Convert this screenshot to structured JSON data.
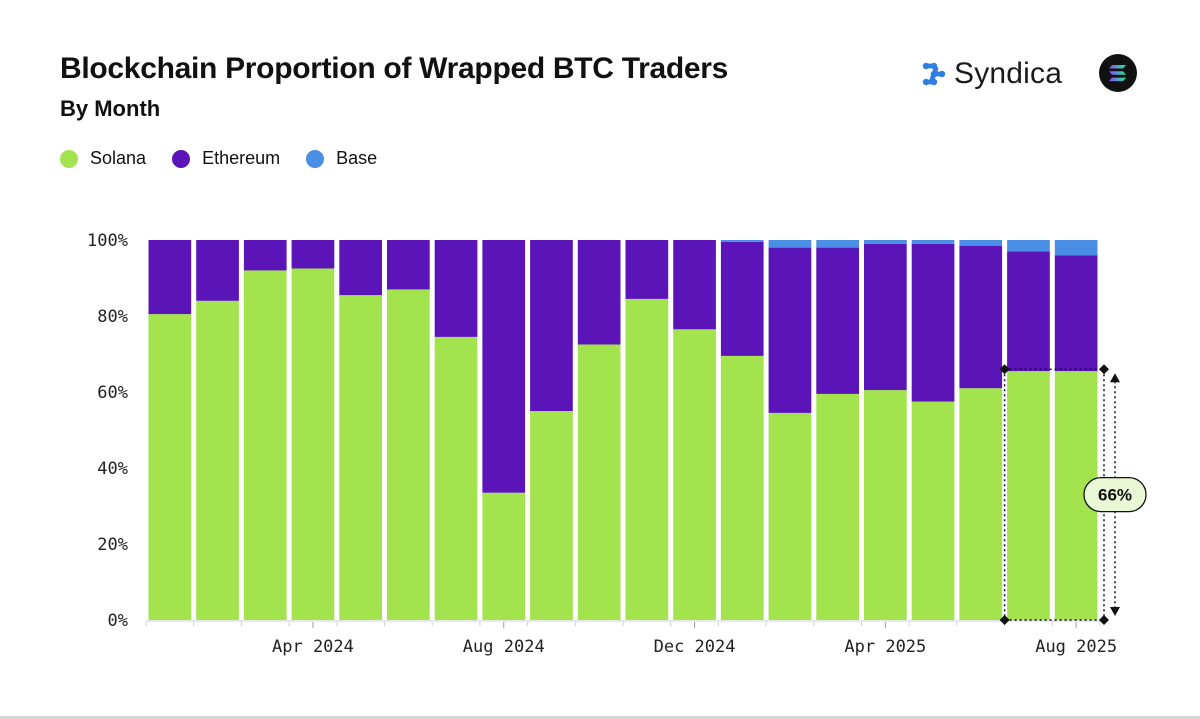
{
  "header": {
    "title": "Blockchain Proportion of Wrapped BTC Traders",
    "subtitle": "By Month"
  },
  "brand": {
    "name": "Syndica",
    "logo_icon": "syndica-logo-icon",
    "badge_icon": "solana-logo-icon"
  },
  "colors": {
    "solana": "#a3e34d",
    "ethereum": "#5b14b8",
    "base": "#4a8ee6"
  },
  "legend": [
    {
      "label": "Solana",
      "color": "#a3e34d"
    },
    {
      "label": "Ethereum",
      "color": "#5b14b8"
    },
    {
      "label": "Base",
      "color": "#4a8ee6"
    }
  ],
  "chart_data": {
    "type": "bar",
    "stacked": true,
    "categories": [
      "2024-01",
      "2024-02",
      "2024-03",
      "2024-04",
      "2024-05",
      "2024-06",
      "2024-07",
      "2024-08",
      "2024-09",
      "2024-10",
      "2024-11",
      "2024-12",
      "2025-01",
      "2025-02",
      "2025-03",
      "2025-04",
      "2025-05",
      "2025-06",
      "2025-07",
      "2025-08"
    ],
    "series": [
      {
        "name": "Solana",
        "color": "#a3e34d",
        "values": [
          80.5,
          84,
          92,
          92.5,
          85.5,
          87,
          74.5,
          33.5,
          55,
          72.5,
          84.5,
          76.5,
          69.5,
          54.5,
          59.5,
          60.5,
          57.5,
          61,
          65.5,
          65.5
        ]
      },
      {
        "name": "Ethereum",
        "color": "#5b14b8",
        "values": [
          19.5,
          16,
          8,
          7.5,
          14.5,
          13,
          25.5,
          66.5,
          45,
          27.5,
          15.5,
          23.5,
          30,
          43.5,
          38.5,
          38.5,
          41.5,
          37.5,
          31.5,
          30.5
        ]
      },
      {
        "name": "Base",
        "color": "#4a8ee6",
        "values": [
          0,
          0,
          0,
          0,
          0,
          0,
          0,
          0,
          0,
          0,
          0,
          0,
          0.5,
          2,
          2,
          1,
          1,
          1.5,
          3,
          4
        ]
      }
    ],
    "y_ticks": [
      "0%",
      "20%",
      "40%",
      "60%",
      "80%",
      "100%"
    ],
    "ylim": [
      0,
      100
    ],
    "x_tick_labels": [
      {
        "label": "Apr 2024",
        "category": "2024-04"
      },
      {
        "label": "Aug 2024",
        "category": "2024-08"
      },
      {
        "label": "Dec 2024",
        "category": "2024-12"
      },
      {
        "label": "Apr 2025",
        "category": "2025-04"
      },
      {
        "label": "Aug 2025",
        "category": "2025-08"
      }
    ],
    "annotation": {
      "label": "66%",
      "value": 66,
      "bracket_from_category": "2025-07",
      "bracket_to_category": "2025-08"
    },
    "grid": false,
    "legend_position": "top-left"
  }
}
